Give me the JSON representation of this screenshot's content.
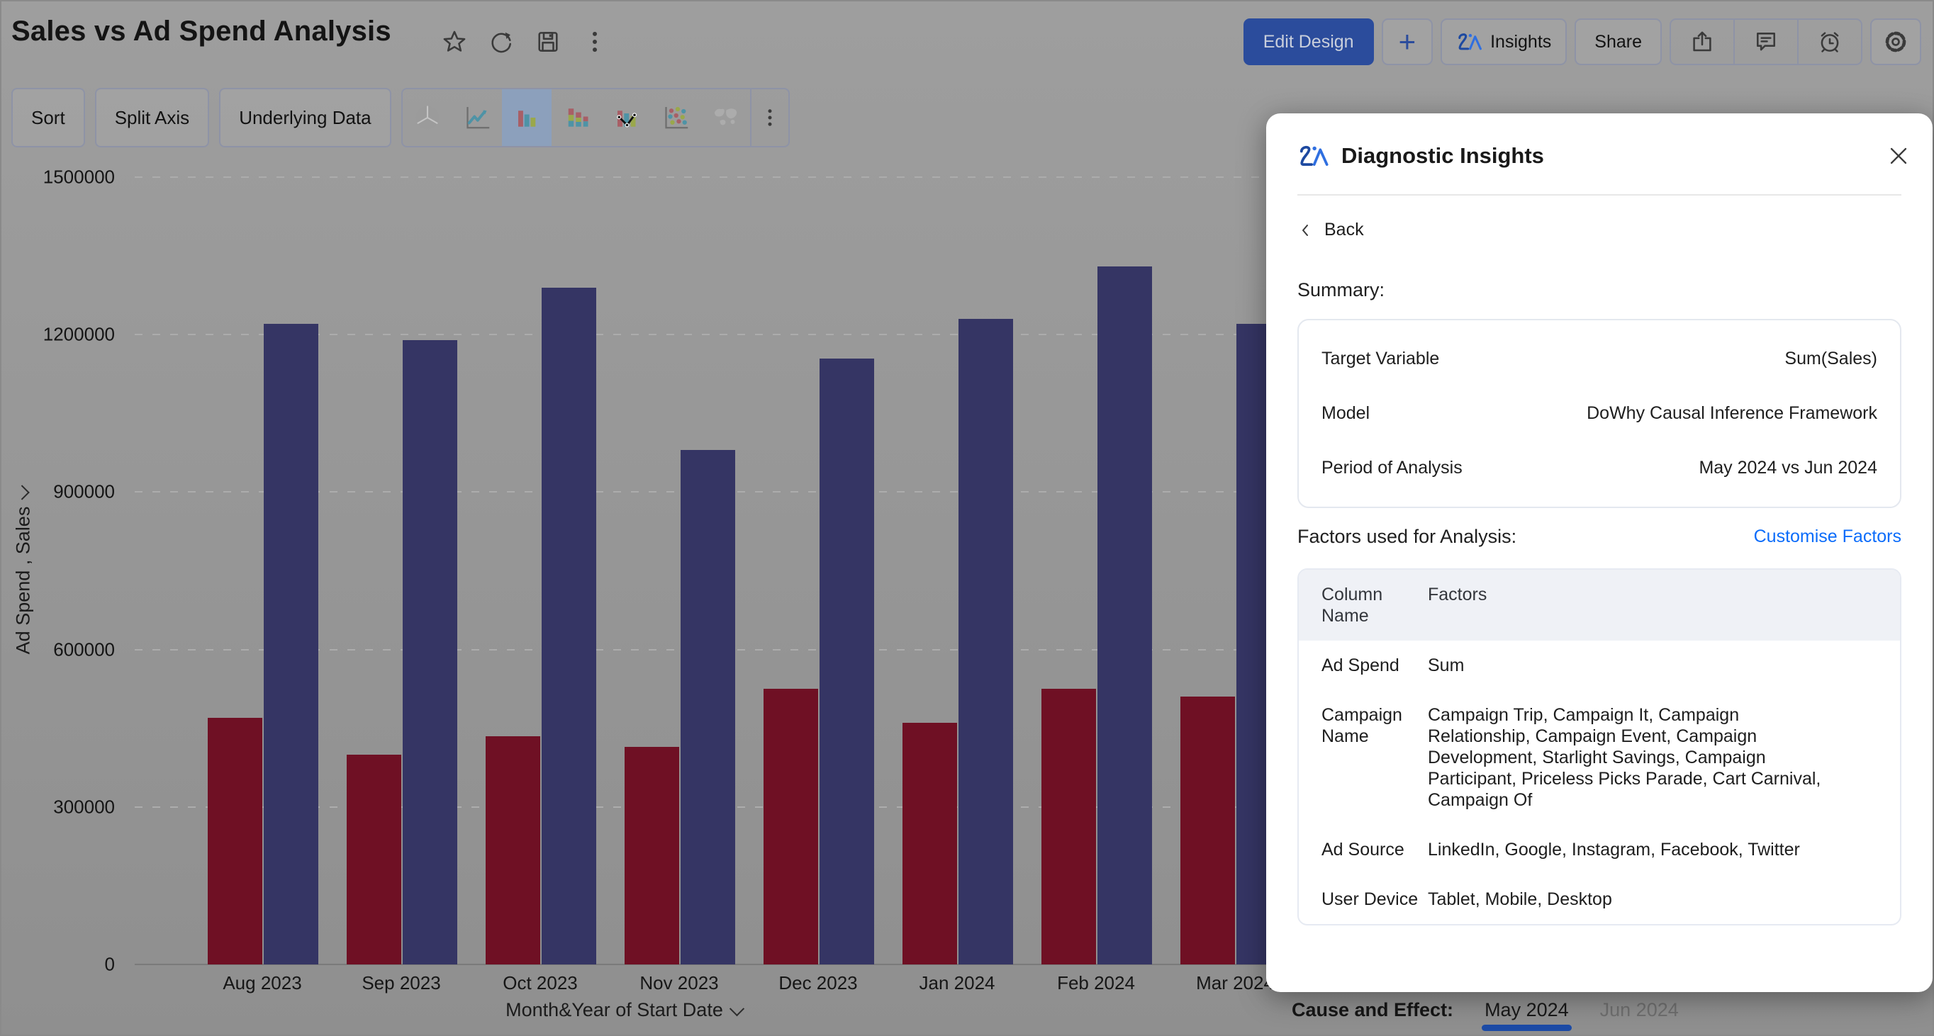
{
  "window": {
    "title": "Sales vs Ad Spend Analysis"
  },
  "topbar": {
    "title_icons": [
      "star-icon",
      "refresh-icon",
      "save-icon",
      "kebab-icon"
    ],
    "edit_design_label": "Edit Design",
    "plus_label": "+",
    "insights_label": "Insights",
    "share_label": "Share",
    "action_icons": [
      "export-icon",
      "comment-icon",
      "alarm-icon"
    ],
    "gear_icon": "gear-icon",
    "edit_design_bg": "#2B4C9C"
  },
  "chart_toolbar": {
    "buttons": [
      "Sort",
      "Split Axis",
      "Underlying Data"
    ],
    "chart_type_icons": [
      "pie-chart-icon",
      "line-chart-icon",
      "bar-chart-icon",
      "stacked-bar-chart-icon",
      "combo-chart-icon",
      "bubble-chart-icon",
      "map-chart-icon"
    ],
    "selected_chart_type": "bar-chart-icon",
    "more_icon": "kebab-icon"
  },
  "chart_data": {
    "type": "bar",
    "title": "Sales vs Ad Spend Analysis",
    "categories": [
      "Aug 2023",
      "Sep 2023",
      "Oct 2023",
      "Nov 2023",
      "Dec 2023",
      "Jan 2024",
      "Feb 2024",
      "Mar 2024"
    ],
    "series": [
      {
        "name": "Ad Spend",
        "color": "#6F1024",
        "values": [
          470000,
          400000,
          435000,
          415000,
          525000,
          460000,
          525000,
          510000
        ]
      },
      {
        "name": "Sales",
        "color": "#353564",
        "values": [
          1220000,
          1190000,
          1290000,
          980000,
          1155000,
          1230000,
          1330000,
          1220000
        ]
      }
    ],
    "xlabel": "Month&Year of Start Date",
    "ylabel": "Ad Spend , Sales",
    "ylim": [
      0,
      1500000
    ],
    "yticks": [
      0,
      300000,
      600000,
      900000,
      1200000,
      1500000
    ],
    "grid": "dashed-horizontal",
    "legend_position": "none",
    "note": "Right part of chart hidden behind Diagnostic Insights panel; Mar 2024 group partially visible"
  },
  "panel": {
    "zia_icon": "zia-logo-icon",
    "title": "Diagnostic Insights",
    "close_icon": "close-icon",
    "back_label": "Back",
    "summary_label": "Summary:",
    "summary_rows": [
      {
        "label": "Target Variable",
        "value": "Sum(Sales)"
      },
      {
        "label": "Model",
        "value": "DoWhy Causal Inference Framework"
      },
      {
        "label": "Period of Analysis",
        "value": "May 2024 vs Jun 2024"
      }
    ],
    "factors_label": "Factors used for Analysis:",
    "customise_link": "Customise Factors",
    "factors_table": {
      "col1_header": "Column Name",
      "col2_header": "Factors",
      "rows": [
        {
          "name": "Ad Spend",
          "factors": "Sum"
        },
        {
          "name": "Campaign Name",
          "factors": "Campaign Trip, Campaign It, Campaign Relationship, Campaign Event, Campaign Development, Starlight Savings, Campaign Participant, Priceless Picks Parade, Cart Carnival, Campaign Of"
        },
        {
          "name": "Ad Source",
          "factors": "LinkedIn, Google, Instagram, Facebook, Twitter"
        },
        {
          "name": "User Device",
          "factors": "Tablet, Mobile, Desktop"
        }
      ]
    },
    "link_color": "#0B6CFA"
  },
  "bottom_bar": {
    "label": "Cause and Effect:",
    "tabs": [
      {
        "label": "May 2024",
        "active": true
      },
      {
        "label": "Jun 2024",
        "active": false
      }
    ],
    "active_underline_color": "#1C4BA6"
  }
}
